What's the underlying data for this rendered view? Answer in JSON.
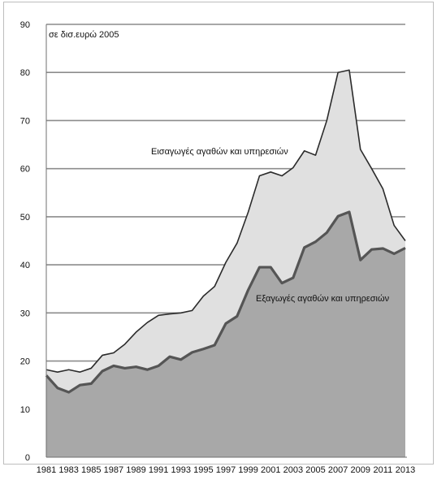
{
  "chart_data": {
    "type": "area",
    "title": "",
    "unit_note": "σε δισ.ευρώ 2005",
    "xlabel": "",
    "ylabel": "",
    "ylim": [
      0,
      90
    ],
    "yticks": [
      0,
      10,
      20,
      30,
      40,
      50,
      60,
      70,
      80,
      90
    ],
    "grid": "horizontal",
    "x": [
      1981,
      1982,
      1983,
      1984,
      1985,
      1986,
      1987,
      1988,
      1989,
      1990,
      1991,
      1992,
      1993,
      1994,
      1995,
      1996,
      1997,
      1998,
      1999,
      2000,
      2001,
      2002,
      2003,
      2004,
      2005,
      2006,
      2007,
      2008,
      2009,
      2010,
      2011,
      2012,
      2013
    ],
    "xtick_labels": [
      "1981",
      "1983",
      "1985",
      "1987",
      "1989",
      "1991",
      "1993",
      "1995",
      "1997",
      "1999",
      "2001",
      "2003",
      "2005",
      "2007",
      "2009",
      "2011",
      "2013"
    ],
    "series": [
      {
        "name": "Εισαγωγές αγαθών και υπηρεσιών",
        "color": "#2b2b2b",
        "fill": "#e0e0e0",
        "values": [
          18.2,
          17.7,
          18.2,
          17.7,
          18.5,
          21.2,
          21.7,
          23.5,
          26.0,
          28.0,
          29.5,
          29.8,
          30.0,
          30.5,
          33.5,
          35.5,
          40.5,
          44.5,
          51.0,
          58.5,
          59.3,
          58.5,
          60.2,
          63.7,
          62.8,
          70.0,
          80.0,
          80.5,
          64.0,
          60.0,
          55.8,
          48.2,
          45.0
        ]
      },
      {
        "name": "Εξαγωγές αγαθών και υπηρεσιών",
        "color": "#555555",
        "fill": "#a8a8a8",
        "values": [
          17.0,
          14.4,
          13.5,
          15.0,
          15.3,
          17.9,
          19.0,
          18.5,
          18.8,
          18.2,
          19.0,
          20.9,
          20.3,
          21.8,
          22.5,
          23.3,
          27.8,
          29.3,
          34.8,
          39.5,
          39.5,
          36.2,
          37.3,
          43.6,
          44.8,
          46.7,
          50.1,
          51.0,
          41.0,
          43.2,
          43.4,
          42.3,
          43.5
        ]
      }
    ],
    "annotations": [
      {
        "text": "Εισαγωγές αγαθών και υπηρεσιών",
        "series": 0
      },
      {
        "text": "Εξαγωγές αγαθών και υπηρεσιών",
        "series": 1
      }
    ]
  }
}
